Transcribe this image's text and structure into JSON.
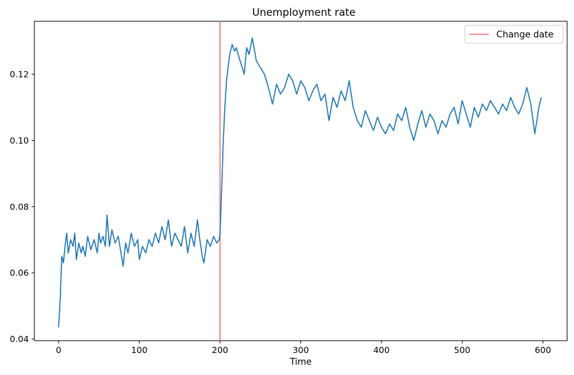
{
  "chart_data": {
    "type": "line",
    "title": "Unemployment rate",
    "xlabel": "Time",
    "ylabel": "",
    "xlim": [
      -30,
      630
    ],
    "ylim": [
      0.0395,
      0.136
    ],
    "xticks": [
      0,
      100,
      200,
      300,
      400,
      500,
      600
    ],
    "yticks": [
      0.04,
      0.06,
      0.08,
      0.1,
      0.12
    ],
    "ytick_labels": [
      "0.04",
      "0.06",
      "0.08",
      "0.10",
      "0.12"
    ],
    "grid": false,
    "legend": {
      "placement": "top-right",
      "entries": [
        "Change date"
      ]
    },
    "colors": {
      "series": "#1f77b4",
      "change_date": "#f26b6b"
    },
    "vlines": [
      {
        "name": "Change date",
        "x": 200
      }
    ],
    "series": [
      {
        "x": [
          0,
          2,
          4,
          6,
          8,
          10,
          12,
          15,
          18,
          20,
          22,
          25,
          28,
          30,
          33,
          36,
          40,
          44,
          48,
          50,
          52,
          55,
          58,
          60,
          63,
          66,
          70,
          74,
          78,
          80,
          83,
          86,
          90,
          94,
          98,
          100,
          104,
          108,
          112,
          116,
          120,
          124,
          128,
          132,
          136,
          140,
          144,
          148,
          152,
          156,
          160,
          164,
          168,
          172,
          175,
          178,
          180,
          184,
          188,
          192,
          196,
          199,
          200,
          202,
          204,
          206,
          208,
          210,
          212,
          215,
          218,
          220,
          225,
          230,
          233,
          236,
          240,
          245,
          250,
          255,
          260,
          265,
          270,
          275,
          280,
          285,
          290,
          295,
          300,
          305,
          310,
          315,
          320,
          325,
          330,
          335,
          340,
          345,
          350,
          355,
          360,
          365,
          370,
          375,
          380,
          385,
          390,
          395,
          400,
          405,
          410,
          415,
          420,
          425,
          430,
          435,
          440,
          445,
          450,
          455,
          460,
          465,
          470,
          475,
          480,
          485,
          490,
          495,
          500,
          505,
          510,
          515,
          520,
          525,
          530,
          535,
          540,
          545,
          550,
          555,
          560,
          565,
          570,
          575,
          580,
          585,
          590,
          595,
          598
        ],
        "y": [
          0.0435,
          0.052,
          0.065,
          0.063,
          0.068,
          0.072,
          0.066,
          0.07,
          0.068,
          0.072,
          0.064,
          0.069,
          0.066,
          0.068,
          0.065,
          0.071,
          0.067,
          0.07,
          0.066,
          0.072,
          0.069,
          0.071,
          0.068,
          0.0775,
          0.068,
          0.073,
          0.069,
          0.071,
          0.065,
          0.062,
          0.069,
          0.066,
          0.072,
          0.068,
          0.07,
          0.064,
          0.068,
          0.066,
          0.07,
          0.068,
          0.072,
          0.069,
          0.074,
          0.07,
          0.076,
          0.068,
          0.072,
          0.07,
          0.068,
          0.074,
          0.066,
          0.072,
          0.068,
          0.076,
          0.07,
          0.065,
          0.063,
          0.07,
          0.068,
          0.071,
          0.069,
          0.07,
          0.072,
          0.085,
          0.1,
          0.11,
          0.118,
          0.122,
          0.126,
          0.129,
          0.127,
          0.128,
          0.124,
          0.12,
          0.128,
          0.126,
          0.131,
          0.124,
          0.122,
          0.12,
          0.116,
          0.111,
          0.117,
          0.114,
          0.116,
          0.12,
          0.118,
          0.114,
          0.118,
          0.116,
          0.112,
          0.115,
          0.117,
          0.112,
          0.114,
          0.106,
          0.113,
          0.11,
          0.115,
          0.112,
          0.118,
          0.11,
          0.106,
          0.104,
          0.109,
          0.106,
          0.103,
          0.107,
          0.104,
          0.102,
          0.105,
          0.103,
          0.108,
          0.106,
          0.11,
          0.104,
          0.1,
          0.105,
          0.109,
          0.104,
          0.108,
          0.106,
          0.102,
          0.106,
          0.104,
          0.108,
          0.11,
          0.105,
          0.112,
          0.108,
          0.104,
          0.11,
          0.107,
          0.111,
          0.109,
          0.112,
          0.11,
          0.108,
          0.111,
          0.109,
          0.113,
          0.11,
          0.108,
          0.111,
          0.116,
          0.111,
          0.102,
          0.11,
          0.113
        ]
      }
    ]
  }
}
